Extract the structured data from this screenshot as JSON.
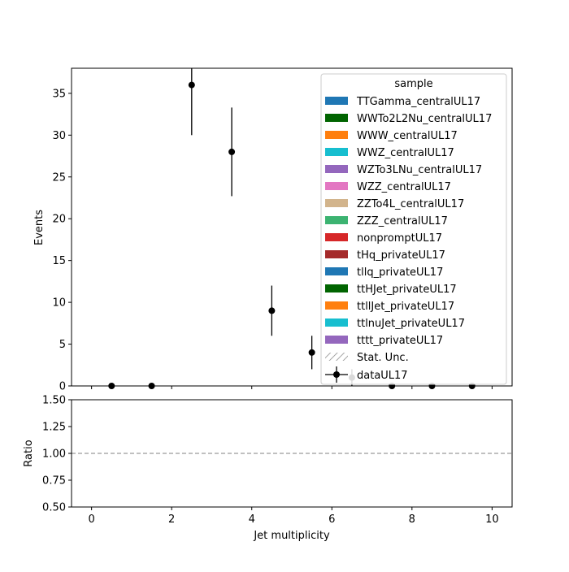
{
  "chart_data": {
    "type": "scatter",
    "xlabel": "Jet multiplicity",
    "ylabel": "Events",
    "ratio_ylabel": "Ratio",
    "xlim": [
      -0.5,
      10.5
    ],
    "ylim": [
      0,
      38
    ],
    "ratio_ylim": [
      0.5,
      1.5
    ],
    "x_ticks": [
      "0",
      "2",
      "4",
      "6",
      "8",
      "10"
    ],
    "y_ticks": [
      "0",
      "5",
      "10",
      "15",
      "20",
      "25",
      "30",
      "35"
    ],
    "ratio_ticks": [
      "0.50",
      "0.75",
      "1.00",
      "1.25",
      "1.50"
    ],
    "ratio_reference": 1.0,
    "legend": {
      "title": "sample",
      "placement": "top-right",
      "entries": [
        {
          "name": "TTGamma_centralUL17",
          "color": "#1f77b4"
        },
        {
          "name": "WWTo2L2Nu_centralUL17",
          "color": "#006400"
        },
        {
          "name": "WWW_centralUL17",
          "color": "#ff7f0e"
        },
        {
          "name": "WWZ_centralUL17",
          "color": "#17becf"
        },
        {
          "name": "WZTo3LNu_centralUL17",
          "color": "#9467bd"
        },
        {
          "name": "WZZ_centralUL17",
          "color": "#e377c2"
        },
        {
          "name": "ZZTo4L_centralUL17",
          "color": "#d2b48c"
        },
        {
          "name": "ZZZ_centralUL17",
          "color": "#3cb371"
        },
        {
          "name": "nonpromptUL17",
          "color": "#d62728"
        },
        {
          "name": "tHq_privateUL17",
          "color": "#a52a2a"
        },
        {
          "name": "tllq_privateUL17",
          "color": "#1f77b4"
        },
        {
          "name": "ttHJet_privateUL17",
          "color": "#006400"
        },
        {
          "name": "ttllJet_privateUL17",
          "color": "#ff7f0e"
        },
        {
          "name": "ttlnuJet_privateUL17",
          "color": "#17becf"
        },
        {
          "name": "tttt_privateUL17",
          "color": "#9467bd"
        }
      ],
      "unc_label": "Stat. Unc.",
      "data_label": "dataUL17"
    },
    "series": [
      {
        "name": "dataUL17",
        "color": "#000000",
        "points": [
          {
            "x": 0.5,
            "y": 0,
            "err": 0
          },
          {
            "x": 1.5,
            "y": 0,
            "err": 0
          },
          {
            "x": 2.5,
            "y": 36,
            "err": 6
          },
          {
            "x": 3.5,
            "y": 28,
            "err": 5.3
          },
          {
            "x": 4.5,
            "y": 9,
            "err": 3
          },
          {
            "x": 5.5,
            "y": 4,
            "err": 2
          },
          {
            "x": 6.5,
            "y": 1,
            "err": 1
          },
          {
            "x": 7.5,
            "y": 0,
            "err": 0
          },
          {
            "x": 8.5,
            "y": 0,
            "err": 0
          },
          {
            "x": 9.5,
            "y": 0,
            "err": 0
          }
        ]
      }
    ]
  }
}
